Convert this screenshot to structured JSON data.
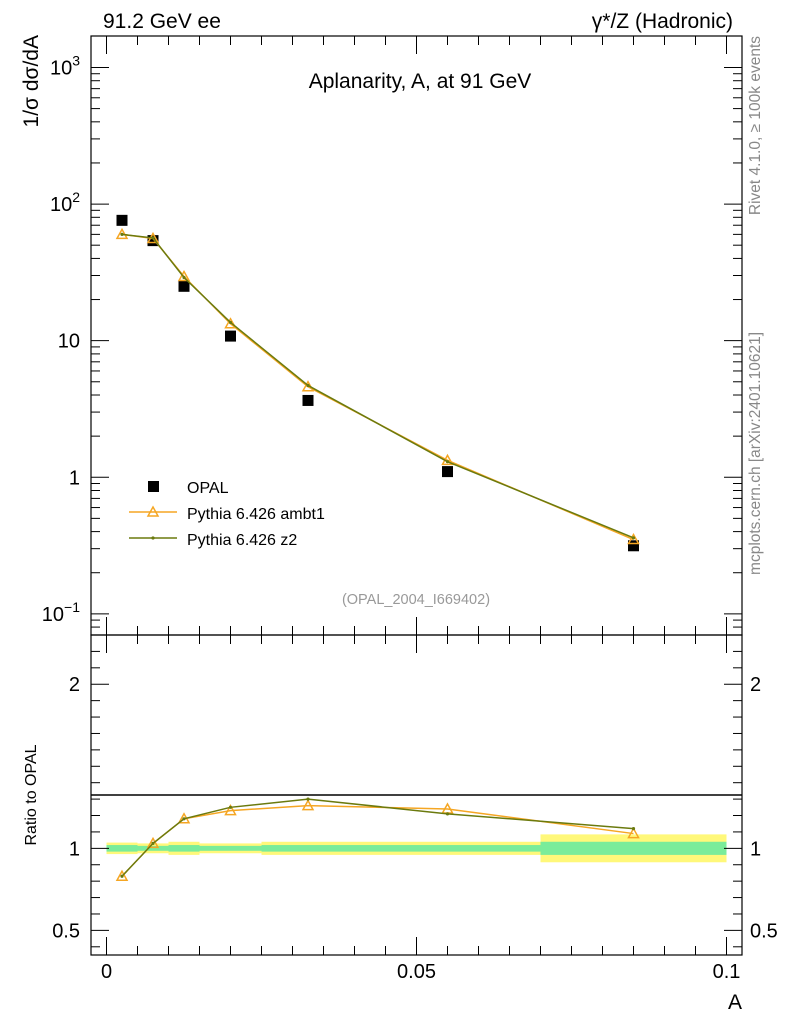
{
  "header": {
    "left": "91.2 GeV ee",
    "right": "γ*/Z (Hadronic)"
  },
  "side_text": {
    "rivet": "Rivet 4.1.0, ≥ 100k events",
    "mcplots": "mcplots.cern.ch [arXiv:2401.10621]"
  },
  "chart_data": [
    {
      "panel": "main",
      "type": "scatter",
      "title": "Aplanarity, A, at 91 GeV",
      "ylabel": "1/σ  dσ/dA",
      "yscale": "log",
      "ylim": [
        0.07,
        1700
      ],
      "xlim": [
        -0.0025,
        0.1025
      ],
      "yticks": [
        {
          "value": 0.1,
          "label": "10",
          "sup": "−1"
        },
        {
          "value": 1,
          "label": "1",
          "sup": ""
        },
        {
          "value": 10,
          "label": "10",
          "sup": ""
        },
        {
          "value": 100,
          "label": "10",
          "sup": "2"
        },
        {
          "value": 1000,
          "label": "10",
          "sup": "3"
        }
      ],
      "watermark": "(OPAL_2004_I669402)",
      "legend_position": "lower-left",
      "series": [
        {
          "name": "OPAL",
          "style": "marker-square",
          "color": "#000000",
          "x": [
            0.0025,
            0.0075,
            0.0125,
            0.02,
            0.0325,
            0.055,
            0.085
          ],
          "y": [
            76,
            54,
            25,
            10.8,
            3.65,
            1.1,
            0.315
          ]
        },
        {
          "name": "Pythia 6.426 ambt1",
          "style": "line-triangle",
          "color": "#f5a623",
          "x": [
            0.0025,
            0.0075,
            0.0125,
            0.02,
            0.0325,
            0.055,
            0.085
          ],
          "y": [
            60,
            56,
            29.5,
            13.3,
            4.6,
            1.33,
            0.35
          ]
        },
        {
          "name": "Pythia 6.426 z2",
          "style": "line-dot",
          "color": "#6b7a0e",
          "x": [
            0.0025,
            0.0075,
            0.0125,
            0.02,
            0.0325,
            0.055,
            0.085
          ],
          "y": [
            60,
            56.5,
            29,
            13.6,
            4.7,
            1.3,
            0.36
          ]
        }
      ]
    },
    {
      "panel": "ratio",
      "type": "line",
      "ylabel": "Ratio to OPAL",
      "xlabel": "A",
      "ylim": [
        0.35,
        2.3
      ],
      "xlim": [
        -0.0025,
        0.1025
      ],
      "xticks": [
        {
          "value": 0,
          "label": "0"
        },
        {
          "value": 0.05,
          "label": "0.05"
        },
        {
          "value": 0.1,
          "label": "0.1"
        }
      ],
      "yticks": [
        {
          "value": 0.5,
          "label": "0.5"
        },
        {
          "value": 1,
          "label": "1"
        },
        {
          "value": 2,
          "label": "2"
        }
      ],
      "uncertainty_bands": [
        {
          "x0": 0.0,
          "x1": 0.005,
          "stat": 0.02,
          "total": 0.035
        },
        {
          "x0": 0.005,
          "x1": 0.01,
          "stat": 0.015,
          "total": 0.03
        },
        {
          "x0": 0.01,
          "x1": 0.015,
          "stat": 0.02,
          "total": 0.04
        },
        {
          "x0": 0.015,
          "x1": 0.025,
          "stat": 0.015,
          "total": 0.03
        },
        {
          "x0": 0.025,
          "x1": 0.04,
          "stat": 0.02,
          "total": 0.04
        },
        {
          "x0": 0.04,
          "x1": 0.07,
          "stat": 0.02,
          "total": 0.04
        },
        {
          "x0": 0.07,
          "x1": 0.1,
          "stat": 0.04,
          "total": 0.085
        }
      ],
      "series": [
        {
          "name": "Pythia 6.426 ambt1",
          "style": "line-triangle",
          "color": "#f5a623",
          "x": [
            0.0025,
            0.0075,
            0.0125,
            0.02,
            0.0325,
            0.055,
            0.085
          ],
          "y": [
            0.83,
            1.03,
            1.18,
            1.23,
            1.26,
            1.24,
            1.09
          ]
        },
        {
          "name": "Pythia 6.426 z2",
          "style": "line-dot",
          "color": "#6b7a0e",
          "x": [
            0.0025,
            0.0075,
            0.0125,
            0.02,
            0.0325,
            0.055,
            0.085
          ],
          "y": [
            0.83,
            1.03,
            1.18,
            1.25,
            1.3,
            1.21,
            1.12
          ]
        }
      ]
    }
  ]
}
